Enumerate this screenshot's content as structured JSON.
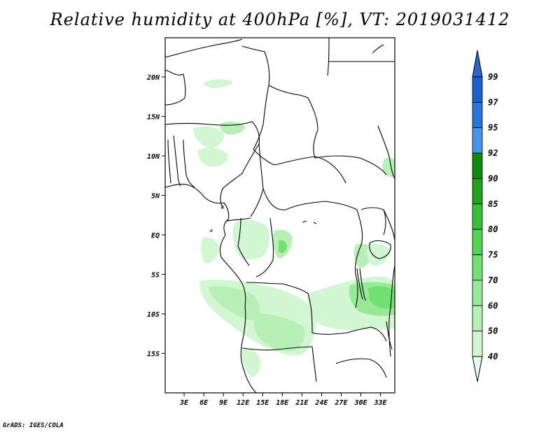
{
  "title": "Relative humidity at 400hPa [%], VT: 2019031412",
  "credit": "GrADS: IGES/COLA",
  "map": {
    "variable": "Relative humidity",
    "level": "400hPa",
    "units": "%",
    "valid_time": "2019031412",
    "region": "West-Central Africa",
    "lat_range": [
      -20,
      25
    ],
    "lon_range": [
      0,
      35
    ],
    "lat_labels": [
      {
        "lat": 20,
        "text": "20N"
      },
      {
        "lat": 15,
        "text": "15N"
      },
      {
        "lat": 10,
        "text": "10N"
      },
      {
        "lat": 5,
        "text": "5N"
      },
      {
        "lat": 0,
        "text": "EQ"
      },
      {
        "lat": -5,
        "text": "5S"
      },
      {
        "lat": -10,
        "text": "10S"
      },
      {
        "lat": -15,
        "text": "15S"
      }
    ],
    "lon_labels": [
      {
        "lon": 3,
        "text": "3E"
      },
      {
        "lon": 6,
        "text": "6E"
      },
      {
        "lon": 9,
        "text": "9E"
      },
      {
        "lon": 12,
        "text": "12E"
      },
      {
        "lon": 15,
        "text": "15E"
      },
      {
        "lon": 18,
        "text": "18E"
      },
      {
        "lon": 21,
        "text": "21E"
      },
      {
        "lon": 24,
        "text": "24E"
      },
      {
        "lon": 27,
        "text": "27E"
      },
      {
        "lon": 30,
        "text": "30E"
      },
      {
        "lon": 33,
        "text": "33E"
      }
    ]
  },
  "colorbar": {
    "levels": [
      {
        "label": "99",
        "color": "#1e5fcf"
      },
      {
        "label": "97",
        "color": "#2a74dc"
      },
      {
        "label": "95",
        "color": "#4a95ea"
      },
      {
        "label": "92",
        "color": "#0f8a0f"
      },
      {
        "label": "90",
        "color": "#1fa21f"
      },
      {
        "label": "85",
        "color": "#37bf37"
      },
      {
        "label": "80",
        "color": "#52d552"
      },
      {
        "label": "75",
        "color": "#72e072"
      },
      {
        "label": "70",
        "color": "#96e996"
      },
      {
        "label": "60",
        "color": "#b6f0b6"
      },
      {
        "label": "50",
        "color": "#d2f6d2"
      },
      {
        "label": "40",
        "color": "#e9fbe9"
      }
    ],
    "top_arrow_color": "#2a66cc",
    "bottom_arrow_color": "#ffffff"
  }
}
